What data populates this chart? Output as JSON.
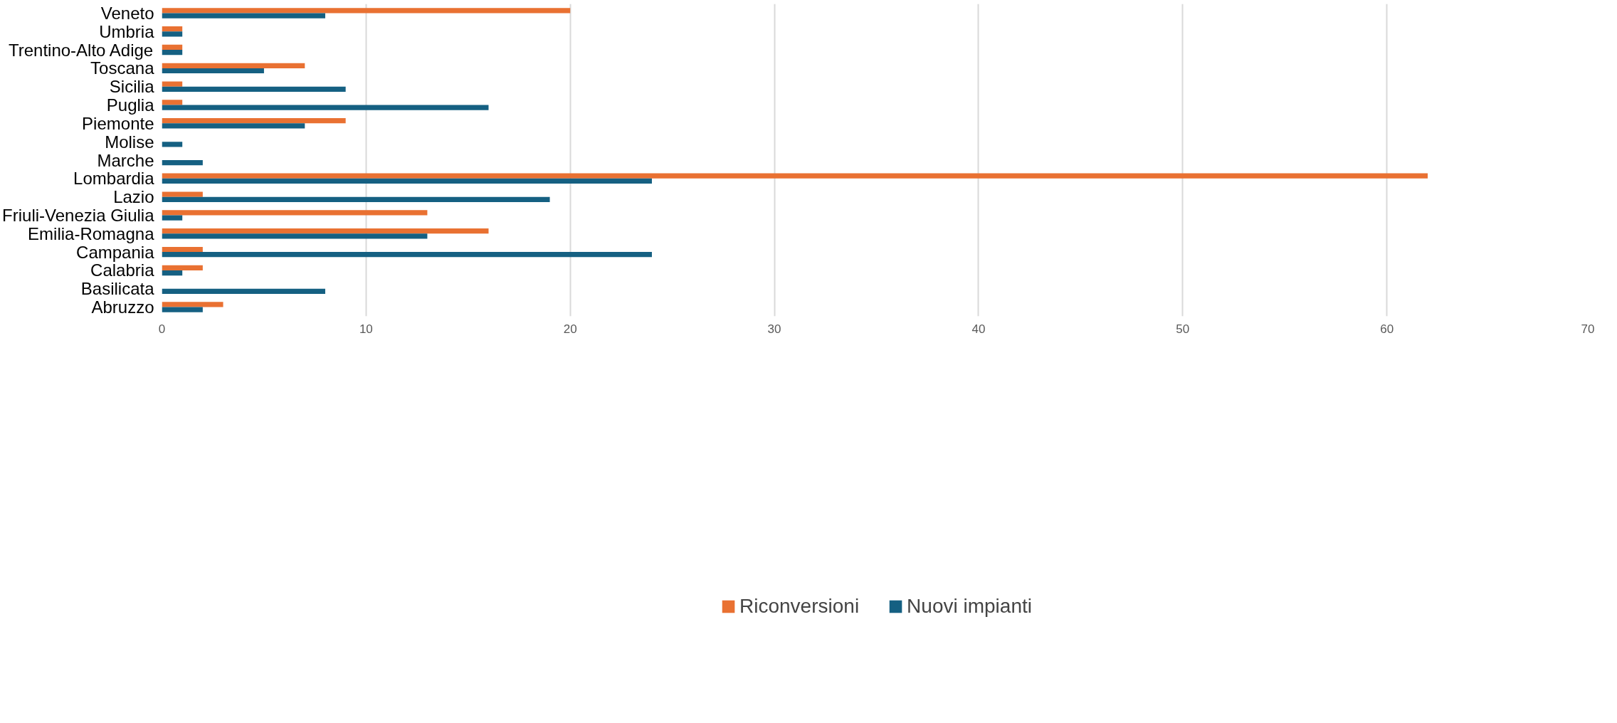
{
  "chart_data": {
    "type": "bar",
    "orientation": "horizontal",
    "categories": [
      "Veneto",
      "Umbria",
      "Trentino-Alto Adige",
      "Toscana",
      "Sicilia",
      "Puglia",
      "Piemonte",
      "Molise",
      "Marche",
      "Lombardia",
      "Lazio",
      "Friuli-Venezia Giulia",
      "Emilia-Romagna",
      "Campania",
      "Calabria",
      "Basilicata",
      "Abruzzo"
    ],
    "series": [
      {
        "name": "Riconversioni",
        "color": "#e97132",
        "values": [
          20,
          1,
          1,
          7,
          1,
          1,
          9,
          0,
          0,
          62,
          2,
          13,
          16,
          2,
          2,
          0,
          3
        ]
      },
      {
        "name": "Nuovi impianti",
        "color": "#156082",
        "values": [
          8,
          1,
          1,
          5,
          9,
          16,
          7,
          1,
          2,
          24,
          19,
          1,
          13,
          24,
          1,
          8,
          2
        ]
      }
    ],
    "xlim": [
      0,
      70
    ],
    "xticks": [
      0,
      10,
      20,
      30,
      40,
      50,
      60,
      70
    ],
    "grid": "x",
    "legend": "bottom"
  }
}
